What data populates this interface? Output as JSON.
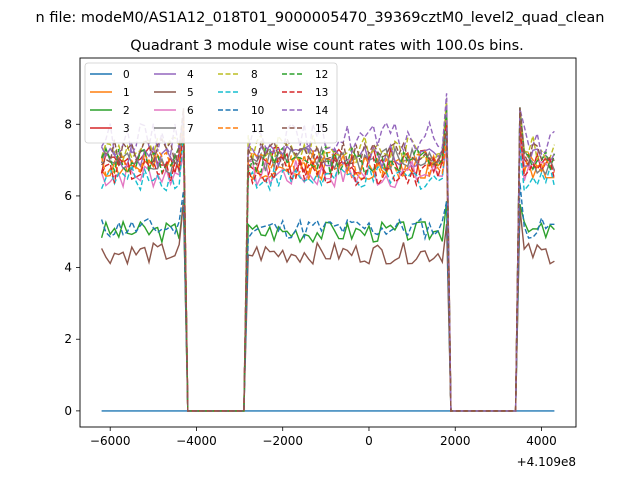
{
  "chart_data": {
    "type": "line",
    "suptitle": "n file: modeM0/AS1A12_018T01_9000005470_39369cztM0_level2_quad_clean",
    "title": "Quadrant 3 module wise count rates with 100.0s bins.",
    "xlabel": "",
    "ylabel": "",
    "offset_label": "+4.109e8",
    "xlim": [
      -6700,
      4800
    ],
    "ylim": [
      -0.45,
      9.85
    ],
    "xticks": [
      -6000,
      -4000,
      -2000,
      0,
      2000,
      4000
    ],
    "xtick_labels": [
      "−6000",
      "−4000",
      "−2000",
      "0",
      "2000",
      "4000"
    ],
    "yticks": [
      0,
      2,
      4,
      6,
      8
    ],
    "ytick_labels": [
      "0",
      "2",
      "4",
      "6",
      "8"
    ],
    "legend_position": "upper-left",
    "x_start": -6200,
    "x_step": 100,
    "segments": [
      {
        "from": -6200,
        "to": -4300
      },
      {
        "from": -2800,
        "to": 1800
      },
      {
        "from": 3500,
        "to": 4300
      }
    ],
    "gaps": [
      {
        "from": -4200,
        "to": -2900
      },
      {
        "from": 1900,
        "to": 3400
      }
    ],
    "series": [
      {
        "name": "0",
        "color": "#1f77b4",
        "dash": "solid",
        "base": 0.0,
        "noise": 0.0,
        "seed": 1,
        "constant": 0
      },
      {
        "name": "1",
        "color": "#ff7f0e",
        "dash": "solid",
        "base": 6.8,
        "noise": 0.35,
        "seed": 2
      },
      {
        "name": "2",
        "color": "#2ca02c",
        "dash": "solid",
        "base": 5.0,
        "noise": 0.3,
        "seed": 3
      },
      {
        "name": "3",
        "color": "#d62728",
        "dash": "solid",
        "base": 7.0,
        "noise": 0.4,
        "seed": 4
      },
      {
        "name": "4",
        "color": "#9467bd",
        "dash": "solid",
        "base": 7.1,
        "noise": 0.35,
        "seed": 5
      },
      {
        "name": "5",
        "color": "#8c564b",
        "dash": "solid",
        "base": 4.4,
        "noise": 0.3,
        "seed": 6
      },
      {
        "name": "6",
        "color": "#e377c2",
        "dash": "solid",
        "base": 6.6,
        "noise": 0.4,
        "seed": 7
      },
      {
        "name": "7",
        "color": "#7f7f7f",
        "dash": "solid",
        "base": 7.0,
        "noise": 0.4,
        "seed": 8
      },
      {
        "name": "8",
        "color": "#bcbd22",
        "dash": "dashed",
        "base": 7.3,
        "noise": 0.4,
        "seed": 9
      },
      {
        "name": "9",
        "color": "#17becf",
        "dash": "dashed",
        "base": 6.5,
        "noise": 0.35,
        "seed": 10
      },
      {
        "name": "10",
        "color": "#1f77b4",
        "dash": "dashed",
        "base": 5.1,
        "noise": 0.3,
        "seed": 11
      },
      {
        "name": "11",
        "color": "#ff7f0e",
        "dash": "dashed",
        "base": 6.9,
        "noise": 0.4,
        "seed": 12
      },
      {
        "name": "12",
        "color": "#2ca02c",
        "dash": "dashed",
        "base": 7.0,
        "noise": 0.4,
        "seed": 13
      },
      {
        "name": "13",
        "color": "#d62728",
        "dash": "dashed",
        "base": 6.7,
        "noise": 0.4,
        "seed": 14
      },
      {
        "name": "14",
        "color": "#9467bd",
        "dash": "dashed",
        "base": 7.6,
        "noise": 0.45,
        "seed": 15
      },
      {
        "name": "15",
        "color": "#8c564b",
        "dash": "dashed",
        "base": 7.2,
        "noise": 0.4,
        "seed": 16
      }
    ]
  }
}
